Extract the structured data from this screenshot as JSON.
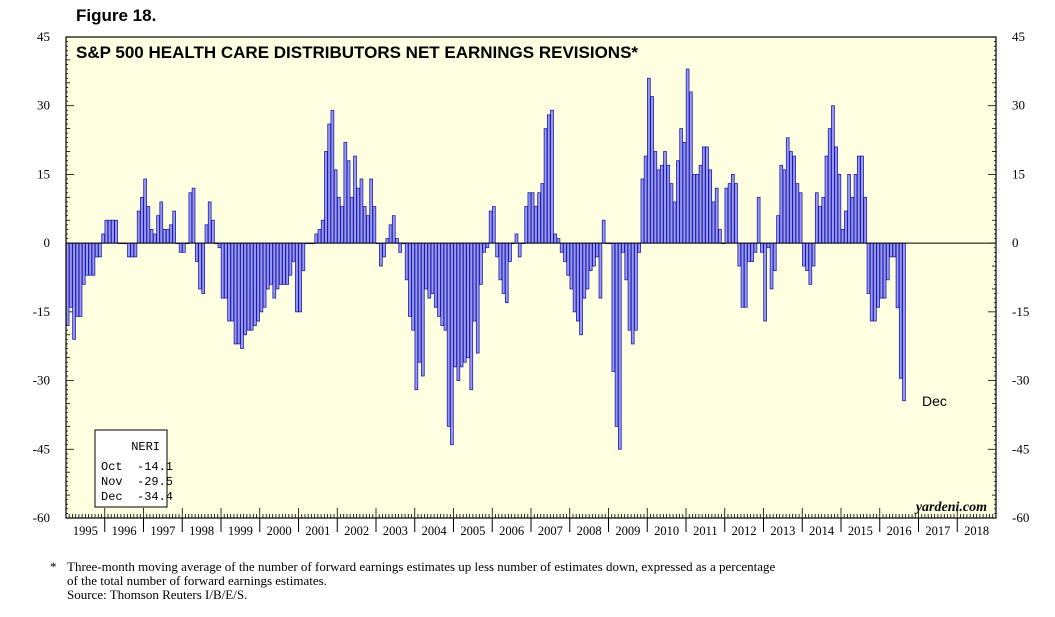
{
  "figure_label": "Figure 18.",
  "footnote": {
    "marker": "*",
    "line1": "Three-month moving average of the number of forward earnings estimates up less number of estimates down, expressed as a percentage",
    "line2": "of the total number of forward earnings estimates.",
    "source": "Source: Thomson Reuters I/B/E/S."
  },
  "colors": {
    "plot_bg": "#fefee0",
    "bar_fill": "#9a9af4",
    "bar_stroke": "#1c1ca8"
  },
  "chart_data": {
    "type": "bar",
    "title": "S&P 500 HEALTH CARE DISTRIBUTORS NET EARNINGS REVISIONS*",
    "xlabel": "",
    "ylabel": "",
    "ylim": [
      -60,
      45
    ],
    "yticks": [
      45,
      30,
      15,
      0,
      -15,
      -30,
      -45,
      -60
    ],
    "ytick_labels": [
      "45",
      "30",
      "15",
      "0",
      "-15",
      "-30",
      "-45",
      "-60"
    ],
    "x_start": "1995-01",
    "x_end_year": 2018,
    "year_labels": [
      "1995",
      "1996",
      "1997",
      "1998",
      "1999",
      "2000",
      "2001",
      "2002",
      "2003",
      "2004",
      "2005",
      "2006",
      "2007",
      "2008",
      "2009",
      "2010",
      "2011",
      "2012",
      "2013",
      "2014",
      "2015",
      "2016",
      "2017",
      "2018"
    ],
    "grid": false,
    "legend": {
      "title": "NERI",
      "rows": [
        "Oct  -14.1",
        "Nov  -29.5",
        "Dec  -34.4"
      ],
      "placement": "bottom-left"
    },
    "annotation": {
      "text": "Dec",
      "x": "2016-12",
      "y": -34.4
    },
    "watermark": "yardeni.com",
    "series": [
      {
        "name": "Net Earnings Revisions (3-mo avg, %)",
        "values": [
          -18,
          -14,
          -21,
          -16,
          -16,
          -9,
          -7,
          -7,
          -7,
          -3,
          -3,
          2,
          5,
          5,
          5,
          5,
          0,
          0,
          0,
          -3,
          -3,
          -3,
          7,
          10,
          14,
          8,
          3,
          2,
          6,
          9,
          3,
          3,
          4,
          7,
          0,
          -2,
          -2,
          0,
          11,
          12,
          -4,
          -10,
          -11,
          4,
          9,
          5,
          0,
          -1,
          -12,
          -12,
          -17,
          -17,
          -22,
          -22,
          -23,
          -20,
          -19,
          -19,
          -18,
          -17,
          -15,
          -14,
          -10,
          -9,
          -12,
          -10,
          -9,
          -9,
          -9,
          -7,
          -4,
          -15,
          -15,
          -6,
          0,
          0,
          0,
          2,
          3,
          5,
          20,
          26,
          29,
          16,
          10,
          8,
          22,
          18,
          10,
          19,
          12,
          14,
          8,
          6,
          14,
          8,
          0,
          -5,
          -3,
          1,
          4,
          6,
          1,
          -2,
          0,
          -8,
          -16,
          -19,
          -32,
          -26,
          -29,
          -10,
          -12,
          -11,
          -14,
          -16,
          -18,
          -19,
          -40,
          -44,
          -27,
          -30,
          -27,
          -26,
          -25,
          -32,
          -17,
          -24,
          -9,
          -2,
          -1,
          7,
          8,
          -3,
          -8,
          -11,
          -13,
          -4,
          0,
          2,
          -3,
          0,
          8,
          11,
          11,
          8,
          11,
          13,
          25,
          28,
          29,
          2,
          1,
          -2,
          -4,
          -7,
          -10,
          -15,
          -17,
          -20,
          -12,
          -10,
          -6,
          -5,
          -3,
          -12,
          5,
          0,
          0,
          -28,
          -40,
          -45,
          -2,
          -8,
          -19,
          -22,
          -19,
          -2,
          14,
          19,
          36,
          32,
          20,
          16,
          17,
          20,
          17,
          13,
          9,
          18,
          25,
          22,
          38,
          33,
          15,
          15,
          17,
          21,
          21,
          16,
          9,
          12,
          3,
          0,
          12,
          13,
          15,
          13,
          -5,
          -14,
          -14,
          -4,
          -4,
          -2,
          10,
          -2,
          -17,
          -1,
          -10,
          -6,
          6,
          17,
          16,
          23,
          20,
          19,
          13,
          11,
          -5,
          -6,
          -9,
          -5,
          11,
          8,
          10,
          19,
          25,
          30,
          21,
          15,
          3,
          7,
          15,
          10,
          15,
          19,
          19,
          10,
          -11,
          -17,
          -17,
          -14,
          -12,
          -12,
          -8,
          -3,
          -3,
          -14.1,
          -29.5,
          -34.4
        ]
      }
    ]
  }
}
